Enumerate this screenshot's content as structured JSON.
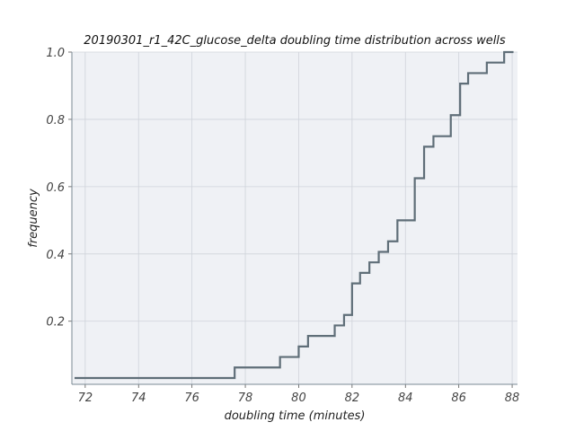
{
  "chart_data": {
    "type": "line",
    "step": "post",
    "title": "20190301_r1_42C_glucose_delta doubling time distribution across wells",
    "xlabel": "doubling time (minutes)",
    "ylabel": "frequency",
    "xlim": [
      71.5,
      88.2
    ],
    "ylim": [
      0.0125,
      1.0
    ],
    "xticks": [
      72,
      74,
      76,
      78,
      80,
      82,
      84,
      86,
      88
    ],
    "yticks": [
      0.2,
      0.4,
      0.6,
      0.8,
      1.0
    ],
    "ytick_labels": [
      "0.2",
      "0.4",
      "0.6",
      "0.8",
      "1.0"
    ],
    "grid": true,
    "plot_background": "#eff1f5",
    "line_color": "#5f6e78",
    "series": [
      {
        "x": [
          71.6,
          77.6,
          79.3,
          80.0,
          80.35,
          81.35,
          81.7,
          82.0,
          82.3,
          82.65,
          83.0,
          83.35,
          83.7,
          84.35,
          84.7,
          85.05,
          85.7,
          86.05,
          86.35,
          87.05,
          87.7,
          88.05
        ],
        "y": [
          0.03125,
          0.0625,
          0.09375,
          0.125,
          0.15625,
          0.1875,
          0.21875,
          0.3125,
          0.34375,
          0.375,
          0.40625,
          0.4375,
          0.5,
          0.625,
          0.71875,
          0.75,
          0.8125,
          0.90625,
          0.9375,
          0.96875,
          1.0,
          1.0
        ]
      }
    ]
  }
}
